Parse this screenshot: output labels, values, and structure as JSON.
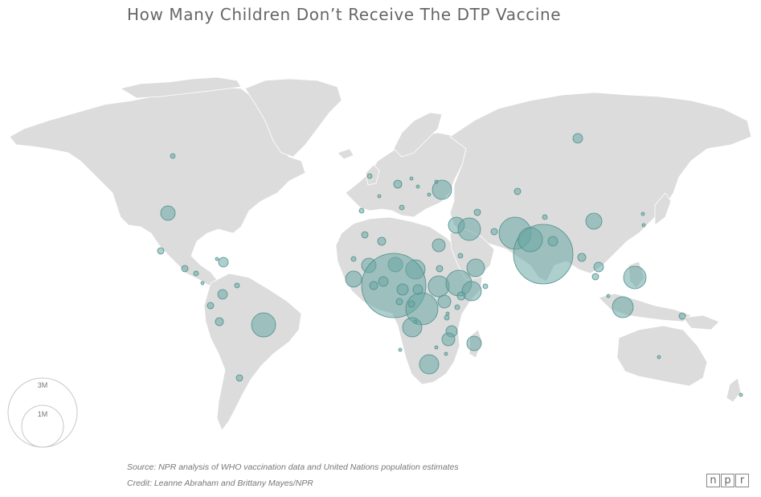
{
  "title": "How Many Children Don’t Receive The DTP Vaccine",
  "legend": {
    "large_label": "3M",
    "small_label": "1M",
    "large_value_millions": 3,
    "small_value_millions": 1
  },
  "source": "Source: NPR analysis of WHO vaccination data and United Nations population estimates",
  "credit": "Credit: Leanne Abraham and Brittany Mayes/NPR",
  "logo": {
    "letters": [
      "n",
      "p",
      "r"
    ]
  },
  "colors": {
    "land": "#dcdcdc",
    "bubble_fill": "#6aa8a4",
    "bubble_stroke": "#4e8f8b",
    "text": "#666666"
  }
}
